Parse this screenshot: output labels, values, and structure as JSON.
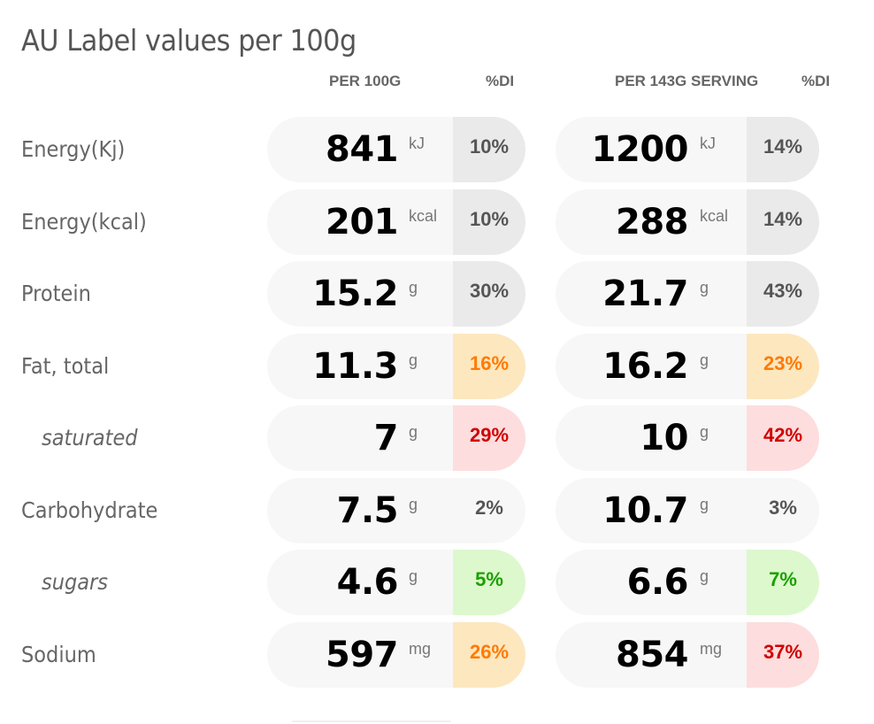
{
  "title": "AU Label values per 100g",
  "headers": {
    "per100g": "PER 100G",
    "di1": "%DI",
    "perServing": "PER 143G SERVING",
    "di2": "%DI"
  },
  "rows": [
    {
      "label": "Energy(Kj)",
      "sub": false,
      "a": {
        "value": "841",
        "unit": "kJ",
        "pct": "10%",
        "level": "neutral"
      },
      "b": {
        "value": "1200",
        "unit": "kJ",
        "pct": "14%",
        "level": "neutral"
      }
    },
    {
      "label": "Energy(kcal)",
      "sub": false,
      "a": {
        "value": "201",
        "unit": "kcal",
        "pct": "10%",
        "level": "neutral"
      },
      "b": {
        "value": "288",
        "unit": "kcal",
        "pct": "14%",
        "level": "neutral"
      }
    },
    {
      "label": "Protein",
      "sub": false,
      "a": {
        "value": "15.2",
        "unit": "g",
        "pct": "30%",
        "level": "neutral"
      },
      "b": {
        "value": "21.7",
        "unit": "g",
        "pct": "43%",
        "level": "neutral"
      }
    },
    {
      "label": "Fat, total",
      "sub": false,
      "a": {
        "value": "11.3",
        "unit": "g",
        "pct": "16%",
        "level": "medium"
      },
      "b": {
        "value": "16.2",
        "unit": "g",
        "pct": "23%",
        "level": "medium"
      }
    },
    {
      "label": "saturated",
      "sub": true,
      "a": {
        "value": "7",
        "unit": "g",
        "pct": "29%",
        "level": "high"
      },
      "b": {
        "value": "10",
        "unit": "g",
        "pct": "42%",
        "level": "high"
      }
    },
    {
      "label": "Carbohydrate",
      "sub": false,
      "a": {
        "value": "7.5",
        "unit": "g",
        "pct": "2%",
        "level": "none"
      },
      "b": {
        "value": "10.7",
        "unit": "g",
        "pct": "3%",
        "level": "none"
      }
    },
    {
      "label": "sugars",
      "sub": true,
      "a": {
        "value": "4.6",
        "unit": "g",
        "pct": "5%",
        "level": "low"
      },
      "b": {
        "value": "6.6",
        "unit": "g",
        "pct": "7%",
        "level": "low"
      }
    },
    {
      "label": "Sodium",
      "sub": false,
      "a": {
        "value": "597",
        "unit": "mg",
        "pct": "26%",
        "level": "medium"
      },
      "b": {
        "value": "854",
        "unit": "mg",
        "pct": "37%",
        "level": "high"
      }
    }
  ]
}
